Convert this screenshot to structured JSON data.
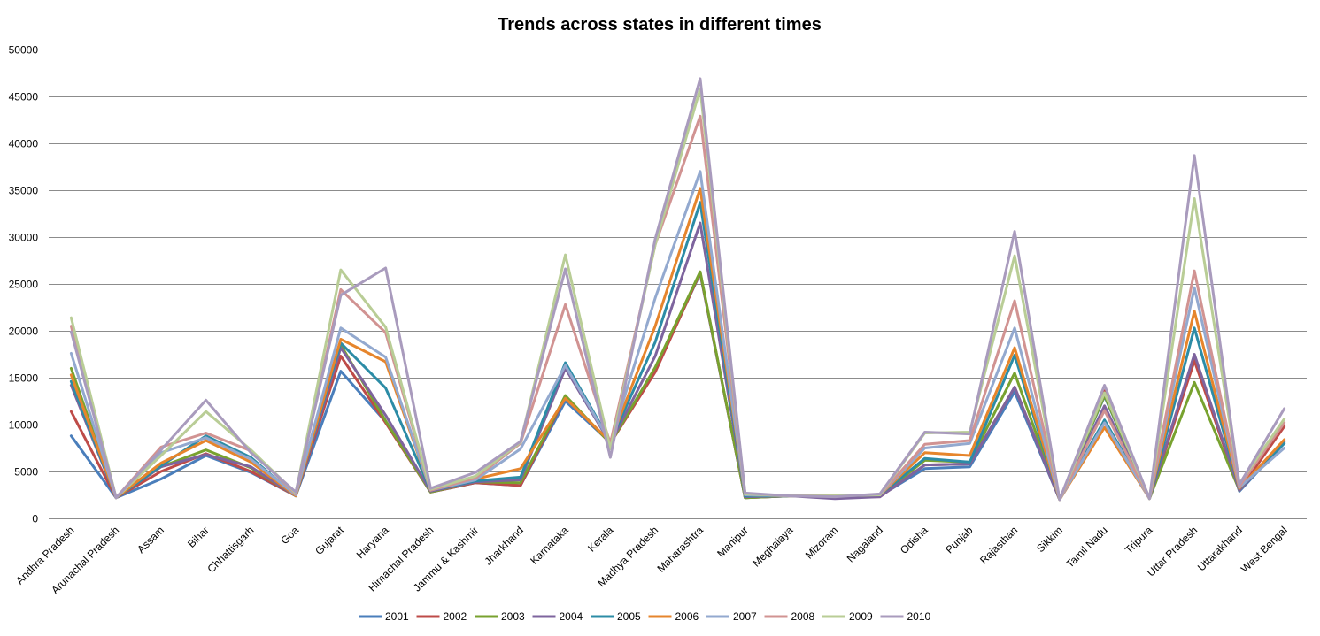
{
  "chart_data": {
    "type": "line",
    "title": "Trends across states in different times",
    "xlabel": "",
    "ylabel": "",
    "ylim": [
      0,
      50000
    ],
    "y_ticks": [
      0,
      5000,
      10000,
      15000,
      20000,
      25000,
      30000,
      35000,
      40000,
      45000,
      50000
    ],
    "grid": true,
    "legend_position": "bottom",
    "categories": [
      "Andhra Pradesh",
      "Arunachal Pradesh",
      "Assam",
      "Bihar",
      "Chhattisgarh",
      "Goa",
      "Gujarat",
      "Haryana",
      "Himachal Pradesh",
      "Jammu & Kashmir",
      "Jharkhand",
      "Karnataka",
      "Kerala",
      "Madhya Pradesh",
      "Maharashtra",
      "Manipur",
      "Meghalaya",
      "Mizoram",
      "Nagaland",
      "Odisha",
      "Punjab",
      "Rajasthan",
      "Sikkim",
      "Tamil Nadu",
      "Tripura",
      "Uttar Pradesh",
      "Uttarakhand",
      "West Bengal"
    ],
    "series": [
      {
        "name": "2001",
        "color": "#4a7ebb",
        "values": [
          8800,
          2200,
          4200,
          6700,
          4900,
          2400,
          15700,
          10300,
          2800,
          3800,
          3500,
          12500,
          8100,
          15800,
          26100,
          2200,
          2400,
          2400,
          2400,
          5300,
          5500,
          13500,
          2000,
          13000,
          2100,
          17000,
          2900,
          8000
        ]
      },
      {
        "name": "2002",
        "color": "#be4b48",
        "values": [
          11400,
          2200,
          5000,
          6900,
          5000,
          2400,
          17300,
          10200,
          2800,
          3800,
          3500,
          13000,
          8000,
          15600,
          26200,
          2200,
          2400,
          2300,
          2300,
          5700,
          5800,
          14000,
          2000,
          13600,
          2100,
          16800,
          3000,
          9800
        ]
      },
      {
        "name": "2003",
        "color": "#78a22f",
        "values": [
          16000,
          2200,
          5500,
          7300,
          5400,
          2400,
          18500,
          10400,
          2800,
          3900,
          3800,
          13100,
          8000,
          16100,
          26300,
          2200,
          2400,
          2400,
          2400,
          6200,
          6000,
          15500,
          2000,
          13100,
          2100,
          14500,
          3000,
          8200
        ]
      },
      {
        "name": "2004",
        "color": "#7e649e",
        "values": [
          14200,
          2200,
          5500,
          6800,
          5500,
          2400,
          18200,
          11000,
          2900,
          3900,
          4100,
          16000,
          8000,
          17300,
          31500,
          2300,
          2400,
          2100,
          2300,
          5700,
          5800,
          14000,
          2000,
          12000,
          2100,
          17500,
          3000,
          8200
        ]
      },
      {
        "name": "2005",
        "color": "#2c8ca6",
        "values": [
          14600,
          2200,
          5600,
          8800,
          6500,
          2400,
          18700,
          13900,
          3000,
          4000,
          4400,
          16600,
          8200,
          18800,
          33700,
          2400,
          2400,
          2500,
          2500,
          6400,
          6000,
          17400,
          2000,
          10500,
          2100,
          20300,
          3200,
          8000
        ]
      },
      {
        "name": "2006",
        "color": "#e6852c",
        "values": [
          15300,
          2200,
          5900,
          8300,
          6000,
          2400,
          19100,
          16700,
          3000,
          4200,
          5300,
          12800,
          8200,
          20500,
          35200,
          2500,
          2400,
          2500,
          2500,
          7000,
          6700,
          18200,
          2000,
          9700,
          2100,
          22100,
          3200,
          8400
        ]
      },
      {
        "name": "2007",
        "color": "#93a9cf",
        "values": [
          17600,
          2200,
          7000,
          8600,
          6300,
          2500,
          20300,
          17200,
          3000,
          4100,
          7400,
          16300,
          8100,
          23500,
          37000,
          2500,
          2400,
          2500,
          2500,
          7500,
          8000,
          20300,
          2000,
          10200,
          2100,
          24600,
          3300,
          7500
        ]
      },
      {
        "name": "2008",
        "color": "#d19392",
        "values": [
          20500,
          2200,
          7600,
          9100,
          7200,
          2600,
          24400,
          19800,
          3000,
          4300,
          8000,
          22800,
          8000,
          29200,
          42900,
          2600,
          2400,
          2500,
          2500,
          7900,
          8300,
          23200,
          2000,
          11500,
          2100,
          26400,
          3400,
          10200
        ]
      },
      {
        "name": "2009",
        "color": "#b9cd96",
        "values": [
          21400,
          2200,
          6700,
          11400,
          7300,
          2700,
          26500,
          20400,
          3100,
          4500,
          8100,
          28100,
          7400,
          29200,
          45800,
          2600,
          2400,
          2400,
          2500,
          9100,
          9200,
          28000,
          2000,
          13400,
          2100,
          34100,
          3700,
          10600
        ]
      },
      {
        "name": "2010",
        "color": "#a99bbd",
        "values": [
          19900,
          2200,
          7300,
          12600,
          7000,
          2800,
          23800,
          26700,
          3200,
          4900,
          8200,
          26600,
          6500,
          29800,
          46900,
          2700,
          2400,
          2300,
          2600,
          9200,
          9000,
          30600,
          2000,
          14200,
          2100,
          38700,
          3600,
          11700
        ]
      }
    ]
  }
}
